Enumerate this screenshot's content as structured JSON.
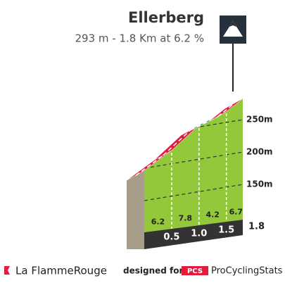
{
  "chart_data": {
    "type": "profile",
    "title": "Ellerberg",
    "subtitle": "293 m - 1.8 Km at 6.2 %",
    "distance_ticks": [
      0.5,
      {
        "value": 1,
        "label": "1.0"
      },
      1.5,
      1.8
    ],
    "gradients": [
      6.2,
      7.8,
      4.2,
      6.7
    ],
    "colors": [
      "#e31b3d",
      "#e31b3d",
      "#2c6797",
      "#e31b3d"
    ],
    "ylim": [
      100,
      300
    ],
    "yticks": [
      {
        "value": 150,
        "label": "150m"
      },
      {
        "value": 200,
        "label": "200m"
      },
      {
        "value": 250,
        "label": "250m"
      }
    ]
  },
  "footer": {
    "brand": "La FlammeRouge",
    "designed": "designed for",
    "pcs": "PCS",
    "site": "ProCyclingStats"
  }
}
